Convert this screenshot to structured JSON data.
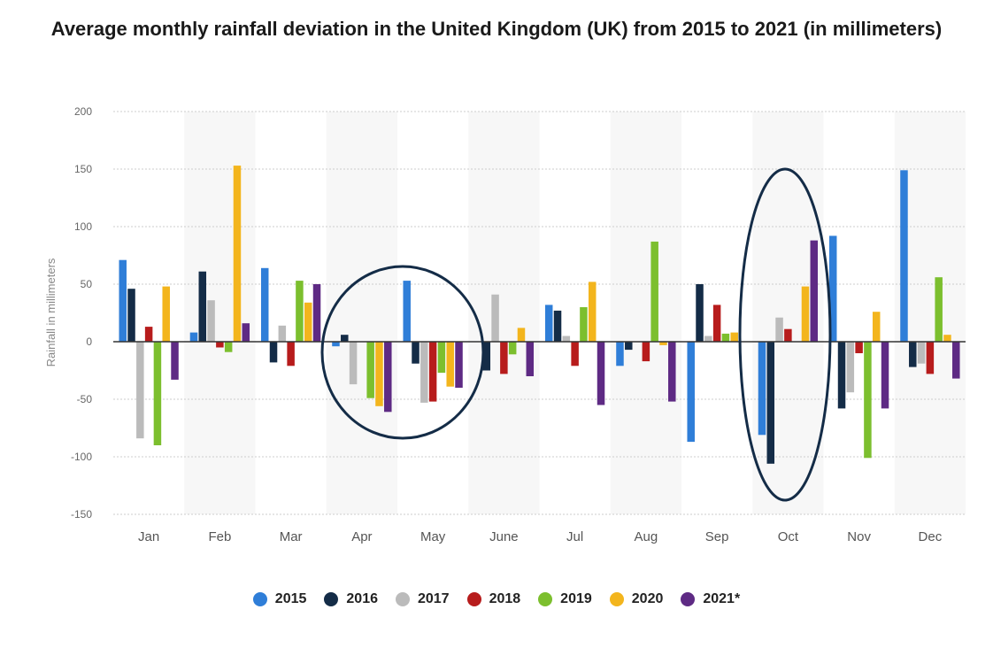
{
  "chart_data": {
    "type": "bar",
    "title": "Average monthly rainfall deviation in the United Kingdom (UK) from 2015 to 2021 (in millimeters)",
    "xlabel": "",
    "ylabel": "Rainfall in millimeters",
    "ylim": [
      -150,
      200
    ],
    "yticks": [
      "200",
      "150",
      "100",
      "50",
      "0",
      "-50",
      "-100",
      "-150"
    ],
    "yticks_values": [
      200,
      150,
      100,
      50,
      0,
      -50,
      -100,
      -150
    ],
    "grid": true,
    "legend_position": "bottom",
    "categories": [
      "Jan",
      "Feb",
      "Mar",
      "Apr",
      "May",
      "June",
      "Jul",
      "Aug",
      "Sep",
      "Oct",
      "Nov",
      "Dec"
    ],
    "series": [
      {
        "name": "2015",
        "color": "#2f7ed8",
        "values": [
          71,
          8,
          64,
          -4,
          53,
          0,
          32,
          -21,
          -87,
          -81,
          92,
          149
        ]
      },
      {
        "name": "2016",
        "color": "#142c47",
        "values": [
          46,
          61,
          -18,
          6,
          -19,
          -25,
          27,
          -7,
          50,
          -106,
          -58,
          -22
        ]
      },
      {
        "name": "2017",
        "color": "#bbbbbb",
        "values": [
          -84,
          36,
          14,
          -37,
          -53,
          41,
          5,
          0,
          5,
          21,
          -44,
          -19
        ]
      },
      {
        "name": "2018",
        "color": "#b71c1c",
        "values": [
          13,
          -5,
          -21,
          0,
          -52,
          -28,
          -21,
          -17,
          32,
          11,
          -10,
          -28
        ]
      },
      {
        "name": "2019",
        "color": "#7cbf2e",
        "values": [
          -90,
          -9,
          53,
          -49,
          -27,
          -11,
          30,
          87,
          7,
          0,
          -101,
          56
        ]
      },
      {
        "name": "2020",
        "color": "#f3b51d",
        "values": [
          48,
          153,
          34,
          -56,
          -39,
          12,
          52,
          -3,
          8,
          48,
          26,
          6
        ]
      },
      {
        "name": "2021*",
        "color": "#5e2a84",
        "values": [
          -33,
          16,
          50,
          -61,
          -40,
          -30,
          -55,
          -52,
          0,
          88,
          -58,
          -32
        ]
      }
    ]
  }
}
